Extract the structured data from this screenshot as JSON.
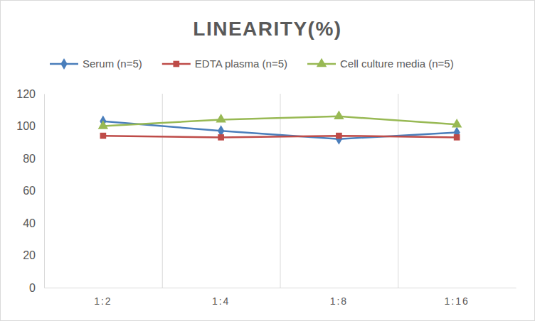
{
  "chart_data": {
    "type": "line",
    "title": "LINEARITY(%)",
    "categories": [
      "1:2",
      "1:4",
      "1:8",
      "1:16"
    ],
    "series": [
      {
        "name": "Serum (n=5)",
        "color": "#4a7ebb",
        "marker": "diamond",
        "values": [
          103,
          97,
          92,
          96
        ]
      },
      {
        "name": "EDTA plasma (n=5)",
        "color": "#be4b48",
        "marker": "square",
        "values": [
          94,
          93,
          94,
          93
        ]
      },
      {
        "name": "Cell culture media (n=5)",
        "color": "#98b954",
        "marker": "triangle",
        "values": [
          100,
          104,
          106,
          101
        ]
      }
    ],
    "ylim": [
      0,
      120
    ],
    "yticks": [
      0,
      20,
      40,
      60,
      80,
      100,
      120
    ],
    "grid": true,
    "legend": "top"
  }
}
